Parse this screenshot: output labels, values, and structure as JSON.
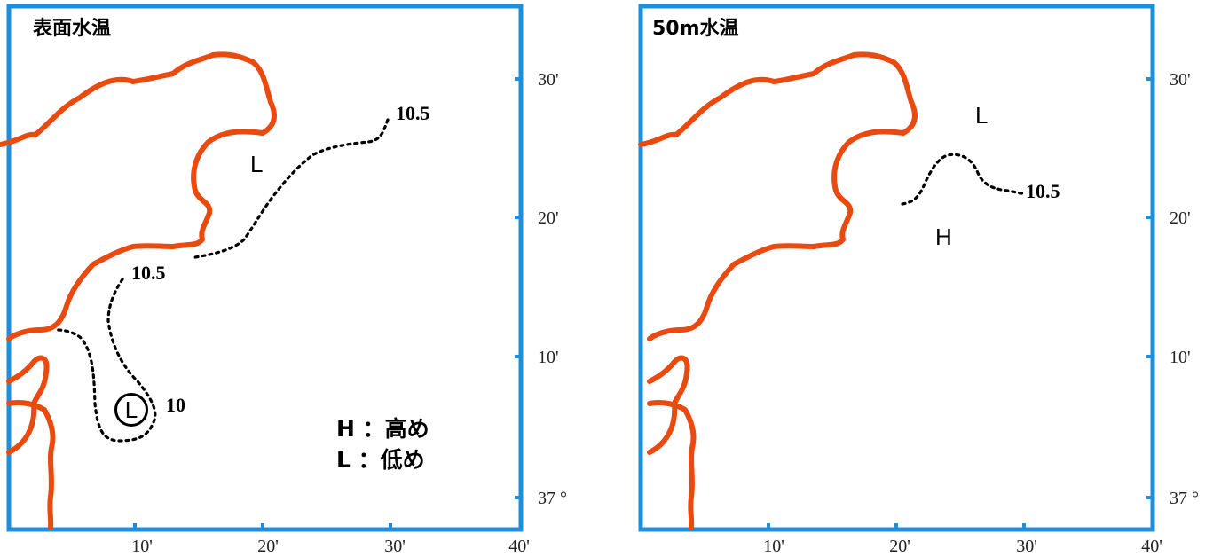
{
  "panels": [
    {
      "title": "表面水温",
      "isotherm_labels": {
        "upper": "10.5",
        "lower": "10.5",
        "low_center": "10"
      },
      "markers": {
        "low": "L",
        "low_circled": "L"
      },
      "legend": {
        "high": "H ：高め",
        "low": "L ：低め"
      }
    },
    {
      "title": "50m水温",
      "isotherm_labels": {
        "main": "10.5"
      },
      "markers": {
        "low": "L",
        "high": "H"
      }
    }
  ],
  "axes": {
    "x_ticks": [
      "10'",
      "20'",
      "30'",
      "40'"
    ],
    "y_ticks": [
      "30'",
      "20'",
      "10'",
      "37 °"
    ]
  },
  "colors": {
    "frame": "#1e8fdc",
    "coastline": "#e84a10",
    "isotherm": "#000000"
  }
}
